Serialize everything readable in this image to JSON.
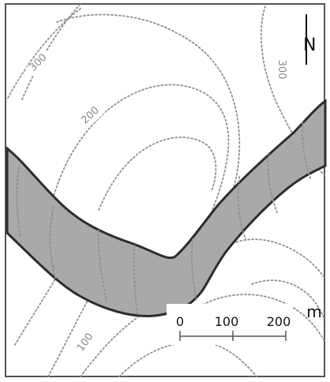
{
  "map": {
    "contour_labels": {
      "upper_left": "300",
      "upper_right": "300",
      "middle_left": "200",
      "lower_left": "100"
    },
    "north_label": "N",
    "scale": {
      "ticks": [
        "0",
        "100",
        "200"
      ],
      "unit": "m"
    },
    "colors": {
      "band_fill": "#a9a9a9",
      "band_stroke": "#2d2d2d",
      "contour": "#8f8f8f",
      "frame": "#555555"
    }
  }
}
